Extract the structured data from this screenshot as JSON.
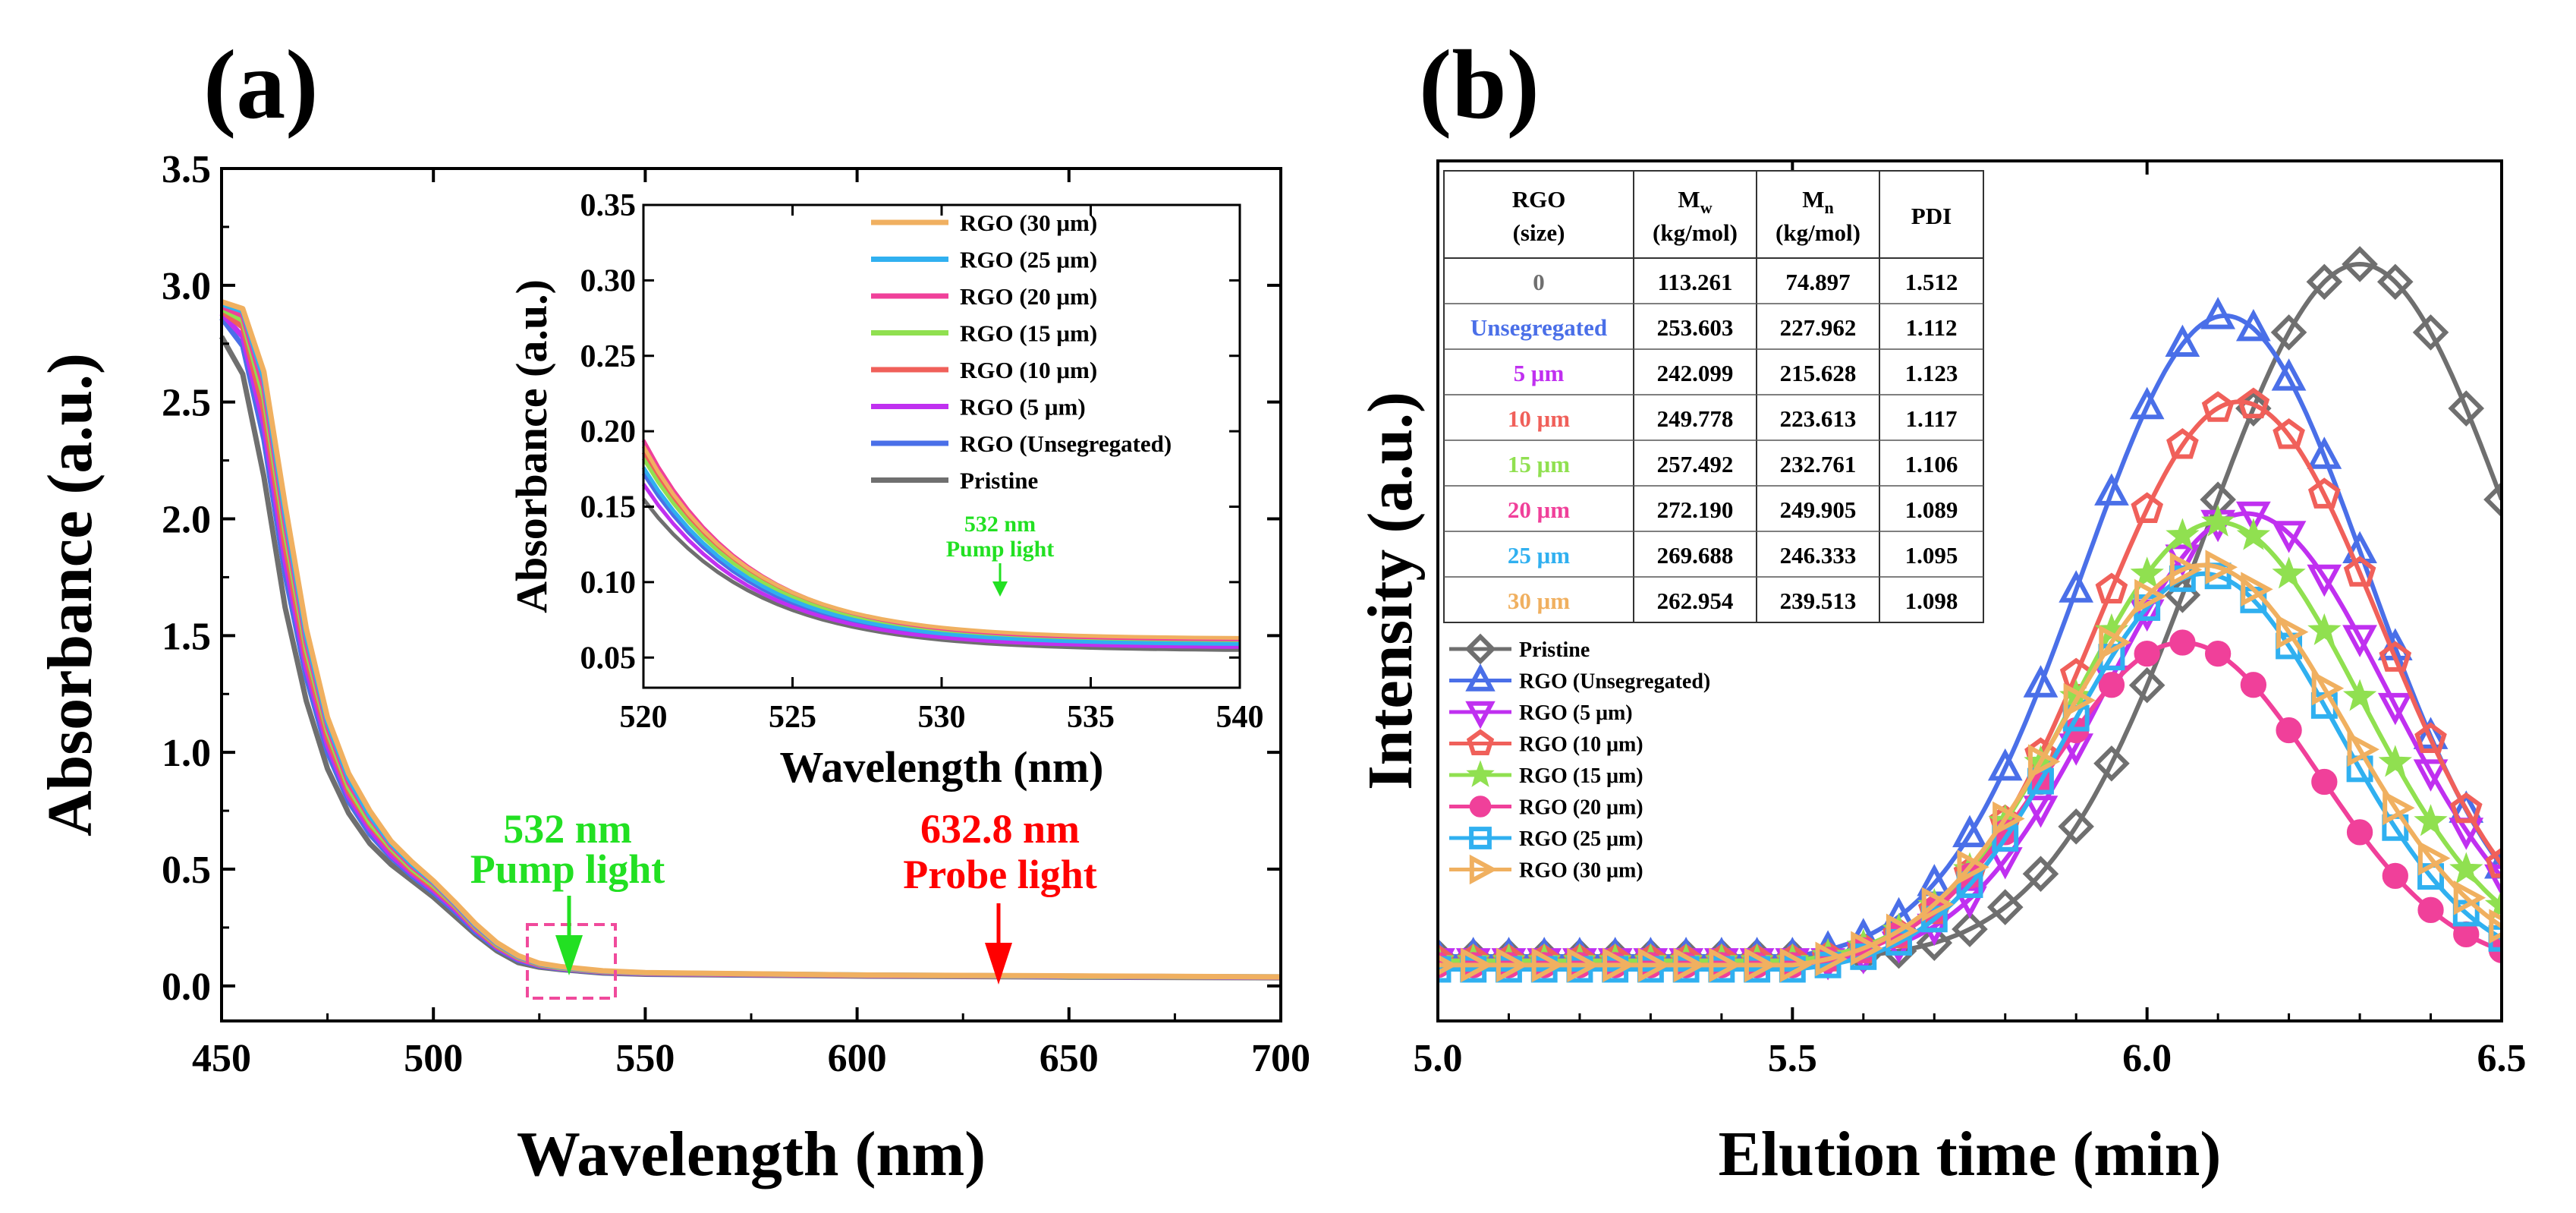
{
  "colors": {
    "pristine": "#6f6f6f",
    "unseg": "#4a6fe8",
    "s5": "#c030f0",
    "s10": "#f0605a",
    "s15": "#90e050",
    "s20": "#f0409a",
    "s25": "#30b0f0",
    "s30": "#f0b060",
    "green": "#22e022",
    "red": "#ff0000",
    "pink": "#f04a9c"
  },
  "chart_data": [
    {
      "panel": "(a)",
      "type": "line",
      "title": "",
      "xlabel": "Wavelength (nm)",
      "ylabel": "Absorbance (a.u.)",
      "xlim": [
        450,
        700
      ],
      "ylim": [
        -0.15,
        3.5
      ],
      "xticks": [
        "450",
        "500",
        "550",
        "600",
        "650",
        "700"
      ],
      "yticks": [
        "0.0",
        "0.5",
        "1.0",
        "1.5",
        "2.0",
        "2.5",
        "3.0",
        "3.5"
      ],
      "x": [
        450,
        455,
        460,
        465,
        470,
        475,
        480,
        485,
        490,
        495,
        500,
        505,
        510,
        515,
        520,
        525,
        530,
        540,
        550,
        600,
        650,
        700
      ],
      "series": [
        {
          "name": "Pristine",
          "color_key": "pristine",
          "values": [
            2.78,
            2.62,
            2.18,
            1.62,
            1.22,
            0.93,
            0.74,
            0.61,
            0.52,
            0.45,
            0.38,
            0.3,
            0.22,
            0.15,
            0.1,
            0.08,
            0.07,
            0.055,
            0.05,
            0.042,
            0.038,
            0.035
          ]
        },
        {
          "name": "RGO (Unsegregated)",
          "color_key": "unseg",
          "values": [
            2.86,
            2.74,
            2.34,
            1.76,
            1.32,
            1.0,
            0.79,
            0.65,
            0.55,
            0.47,
            0.4,
            0.32,
            0.23,
            0.16,
            0.11,
            0.085,
            0.073,
            0.058,
            0.052,
            0.044,
            0.04,
            0.037
          ]
        },
        {
          "name": "RGO (5 μm)",
          "color_key": "s5",
          "values": [
            2.88,
            2.78,
            2.4,
            1.82,
            1.36,
            1.03,
            0.81,
            0.67,
            0.56,
            0.48,
            0.41,
            0.33,
            0.24,
            0.165,
            0.115,
            0.088,
            0.075,
            0.06,
            0.053,
            0.045,
            0.04,
            0.037
          ]
        },
        {
          "name": "RGO (10 μm)",
          "color_key": "s10",
          "values": [
            2.89,
            2.82,
            2.46,
            1.88,
            1.4,
            1.06,
            0.83,
            0.69,
            0.58,
            0.49,
            0.42,
            0.34,
            0.245,
            0.17,
            0.12,
            0.09,
            0.077,
            0.061,
            0.054,
            0.045,
            0.041,
            0.038
          ]
        },
        {
          "name": "RGO (15 μm)",
          "color_key": "s15",
          "values": [
            2.9,
            2.85,
            2.52,
            1.94,
            1.44,
            1.09,
            0.85,
            0.7,
            0.59,
            0.5,
            0.43,
            0.345,
            0.25,
            0.175,
            0.122,
            0.092,
            0.078,
            0.062,
            0.055,
            0.046,
            0.041,
            0.038
          ]
        },
        {
          "name": "RGO (20 μm)",
          "color_key": "s20",
          "values": [
            2.91,
            2.87,
            2.56,
            1.98,
            1.47,
            1.11,
            0.87,
            0.72,
            0.6,
            0.51,
            0.44,
            0.35,
            0.255,
            0.18,
            0.125,
            0.094,
            0.08,
            0.063,
            0.055,
            0.046,
            0.042,
            0.038
          ]
        },
        {
          "name": "RGO (25 μm)",
          "color_key": "s25",
          "values": [
            2.92,
            2.89,
            2.6,
            2.02,
            1.5,
            1.13,
            0.89,
            0.73,
            0.61,
            0.52,
            0.445,
            0.355,
            0.26,
            0.182,
            0.127,
            0.095,
            0.081,
            0.064,
            0.056,
            0.047,
            0.042,
            0.039
          ]
        },
        {
          "name": "RGO (30 μm)",
          "color_key": "s30",
          "values": [
            2.93,
            2.9,
            2.63,
            2.06,
            1.53,
            1.15,
            0.91,
            0.75,
            0.62,
            0.53,
            0.45,
            0.36,
            0.265,
            0.185,
            0.13,
            0.097,
            0.083,
            0.065,
            0.057,
            0.047,
            0.043,
            0.039
          ]
        }
      ],
      "annotations": [
        {
          "text": "532 nm",
          "color_key": "green",
          "x": 532
        },
        {
          "text": "Pump light",
          "color_key": "green",
          "x": 532
        },
        {
          "text": "632.8 nm",
          "color_key": "red",
          "x": 632.8
        },
        {
          "text": "Probe light",
          "color_key": "red",
          "x": 632.8
        }
      ],
      "inset": {
        "type": "line",
        "xlabel": "Wavelength (nm)",
        "ylabel": "Absorbance (a.u.)",
        "xlim": [
          520,
          540
        ],
        "ylim": [
          0.03,
          0.35
        ],
        "xticks": [
          "520",
          "525",
          "530",
          "535",
          "540"
        ],
        "yticks": [
          "0.05",
          "0.10",
          "0.15",
          "0.20",
          "0.25",
          "0.30",
          "0.35"
        ],
        "annotation": [
          "532 nm",
          "Pump light"
        ],
        "legend_order": [
          "RGO (30 μm)",
          "RGO (25 μm)",
          "RGO (20 μm)",
          "RGO (15 μm)",
          "RGO (10 μm)",
          "RGO (5 μm)",
          "RGO (Unsegregated)",
          "Pristine"
        ],
        "series_ends": [
          {
            "name": "Pristine",
            "color_key": "pristine",
            "y520": 0.155,
            "y540": 0.055,
            "k": 0.19
          },
          {
            "name": "RGO (Unsegregated)",
            "color_key": "unseg",
            "y520": 0.172,
            "y540": 0.058,
            "k": 0.18
          },
          {
            "name": "RGO (5 μm)",
            "color_key": "s5",
            "y520": 0.165,
            "y540": 0.057,
            "k": 0.18
          },
          {
            "name": "RGO (10 μm)",
            "color_key": "s10",
            "y520": 0.186,
            "y540": 0.06,
            "k": 0.18
          },
          {
            "name": "RGO (15 μm)",
            "color_key": "s15",
            "y520": 0.182,
            "y540": 0.06,
            "k": 0.18
          },
          {
            "name": "RGO (20 μm)",
            "color_key": "s20",
            "y520": 0.194,
            "y540": 0.062,
            "k": 0.175
          },
          {
            "name": "RGO (25 μm)",
            "color_key": "s25",
            "y520": 0.176,
            "y540": 0.059,
            "k": 0.18
          },
          {
            "name": "RGO (30 μm)",
            "color_key": "s30",
            "y520": 0.19,
            "y540": 0.063,
            "k": 0.175
          }
        ]
      }
    },
    {
      "panel": "(b)",
      "type": "line",
      "title": "",
      "xlabel": "Elution time (min)",
      "ylabel": "Intensity (a.u.)",
      "xlim": [
        5.0,
        6.5
      ],
      "ylim": [
        0,
        1
      ],
      "xticks": [
        "5.0",
        "5.5",
        "6.0",
        "6.5"
      ],
      "series": [
        {
          "name": "Pristine",
          "color_key": "pristine",
          "marker": "diamond",
          "baseline": 0.075,
          "peak_x": 6.3,
          "peak_y": 0.88,
          "sigma": 0.22,
          "start": 5.58
        },
        {
          "name": "RGO (Unsegregated)",
          "color_key": "unseg",
          "marker": "triangle-up",
          "baseline": 0.075,
          "peak_x": 6.11,
          "peak_y": 0.82,
          "sigma": 0.2,
          "start": 5.5
        },
        {
          "name": "RGO (5 μm)",
          "color_key": "s5",
          "marker": "triangle-down",
          "baseline": 0.07,
          "peak_x": 6.14,
          "peak_y": 0.59,
          "sigma": 0.2,
          "start": 5.55
        },
        {
          "name": "RGO (10 μm)",
          "color_key": "s10",
          "marker": "pentagon",
          "baseline": 0.07,
          "peak_x": 6.13,
          "peak_y": 0.72,
          "sigma": 0.2,
          "start": 5.52
        },
        {
          "name": "RGO (15 μm)",
          "color_key": "s15",
          "marker": "star",
          "baseline": 0.07,
          "peak_x": 6.1,
          "peak_y": 0.58,
          "sigma": 0.2,
          "start": 5.5
        },
        {
          "name": "RGO (20 μm)",
          "color_key": "s20",
          "marker": "circle",
          "baseline": 0.065,
          "peak_x": 6.05,
          "peak_y": 0.44,
          "sigma": 0.19,
          "start": 5.5
        },
        {
          "name": "RGO (25 μm)",
          "color_key": "s25",
          "marker": "square",
          "baseline": 0.06,
          "peak_x": 6.08,
          "peak_y": 0.52,
          "sigma": 0.19,
          "start": 5.5
        },
        {
          "name": "RGO (30 μm)",
          "color_key": "s30",
          "marker": "triangle-right",
          "baseline": 0.065,
          "peak_x": 6.08,
          "peak_y": 0.53,
          "sigma": 0.2,
          "start": 5.5
        }
      ],
      "table": {
        "headers": [
          [
            "RGO",
            "(size)"
          ],
          [
            "M",
            "w",
            "(kg/mol)"
          ],
          [
            "M",
            "n",
            "(kg/mol)"
          ],
          [
            "PDI"
          ]
        ],
        "rows": [
          {
            "size": "0",
            "mw": "113.261",
            "mn": "74.897",
            "pdi": "1.512",
            "color_key": "pristine"
          },
          {
            "size": "Unsegregated",
            "mw": "253.603",
            "mn": "227.962",
            "pdi": "1.112",
            "color_key": "unseg"
          },
          {
            "size": "5 μm",
            "mw": "242.099",
            "mn": "215.628",
            "pdi": "1.123",
            "color_key": "s5"
          },
          {
            "size": "10 μm",
            "mw": "249.778",
            "mn": "223.613",
            "pdi": "1.117",
            "color_key": "s10"
          },
          {
            "size": "15 μm",
            "mw": "257.492",
            "mn": "232.761",
            "pdi": "1.106",
            "color_key": "s15"
          },
          {
            "size": "20 μm",
            "mw": "272.190",
            "mn": "249.905",
            "pdi": "1.089",
            "color_key": "s20"
          },
          {
            "size": "25 μm",
            "mw": "269.688",
            "mn": "246.333",
            "pdi": "1.095",
            "color_key": "s25"
          },
          {
            "size": "30 μm",
            "mw": "262.954",
            "mn": "239.513",
            "pdi": "1.098",
            "color_key": "s30"
          }
        ]
      }
    }
  ]
}
